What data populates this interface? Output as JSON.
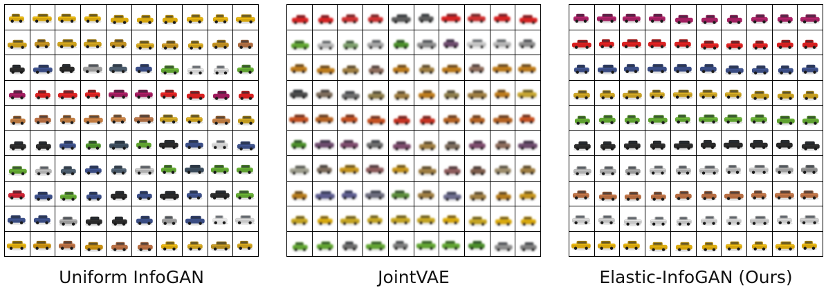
{
  "panels": [
    {
      "caption": "Uniform InfoGAN",
      "blurred": false,
      "rows": [
        [
          "#d4a40e",
          "#d4a40e",
          "#d4a40e",
          "#d4a40e",
          "#d4a40e",
          "#d4a40e",
          "#d4a40e",
          "#d4a40e",
          "#d4a40e",
          "#d4a40e"
        ],
        [
          "#c49a1c",
          "#b88a20",
          "#c49a1c",
          "#c49a1c",
          "#b88a20",
          "#c49a1c",
          "#b88a20",
          "#c49a1c",
          "#b88a20",
          "#a86a40"
        ],
        [
          "#2a2a2a",
          "#3a4c82",
          "#2a2a2a",
          "#9a9a9a",
          "#4a5a6a",
          "#3a4c82",
          "#5ea030",
          "#d0d0d0",
          "#c8c8c8",
          "#5ea030"
        ],
        [
          "#9a1a5a",
          "#d02020",
          "#d02020",
          "#d02020",
          "#9a1a5a",
          "#9a1a5a",
          "#d02020",
          "#d02020",
          "#9a1a5a",
          "#d02020"
        ],
        [
          "#b87840",
          "#b06a40",
          "#b87840",
          "#c07a40",
          "#b87840",
          "#a86a40",
          "#c09a20",
          "#c49a1c",
          "#b87840",
          "#c09a20"
        ],
        [
          "#2a2a2a",
          "#2a2a2a",
          "#3a4c82",
          "#4a8a2a",
          "#3a4a5a",
          "#5ea030",
          "#2a2a2a",
          "#3a4c82",
          "#d0d0d0",
          "#3a4c82"
        ],
        [
          "#5ea030",
          "#b0b0b0",
          "#4a5a6a",
          "#3a4c82",
          "#4a5a6a",
          "#b0b0b0",
          "#5ea030",
          "#3a4a5a",
          "#5ea030",
          "#5ea030"
        ],
        [
          "#c02030",
          "#3a4c82",
          "#5ea030",
          "#3a4c82",
          "#2a2a2a",
          "#3a4c82",
          "#2a2a2a",
          "#3a4c82",
          "#2a2a2a",
          "#5ea030"
        ],
        [
          "#3a4c82",
          "#3a4c82",
          "#9a9a9a",
          "#2a2a2a",
          "#2a2a2a",
          "#3a4c82",
          "#9a9a9a",
          "#3a4c82",
          "#e0e0e0",
          "#c8c8c8"
        ],
        [
          "#d4a40e",
          "#c08a10",
          "#b06a40",
          "#c08a10",
          "#b06a40",
          "#b06a40",
          "#d4a40e",
          "#c49a1c",
          "#b08a20",
          "#c49a1c"
        ]
      ]
    },
    {
      "caption": "JointVAE",
      "blurred": true,
      "rows": [
        [
          "#d02020",
          "#d02020",
          "#c83030",
          "#c83030",
          "#5a5a5a",
          "#5a5a5a",
          "#d02020",
          "#c83030",
          "#d02020",
          "#d02020"
        ],
        [
          "#5ea030",
          "#b0b0b0",
          "#7a9a6a",
          "#a0a0a0",
          "#4a8a2a",
          "#8a8a8a",
          "#6a4a6a",
          "#c0c0c0",
          "#b0b0b0",
          "#8a8a8a"
        ],
        [
          "#b8781a",
          "#b8781a",
          "#9a7a40",
          "#8a6a5a",
          "#b8781a",
          "#9a7a40",
          "#b8781a",
          "#8a6a5a",
          "#b8781a",
          "#b8781a"
        ],
        [
          "#4a4a4a",
          "#7a6a5a",
          "#6a6a6a",
          "#8a7a4a",
          "#9a7a40",
          "#b8781a",
          "#8a7a4a",
          "#9a7a40",
          "#b8781a",
          "#c0a030"
        ],
        [
          "#c05020",
          "#b06020",
          "#c05020",
          "#c05020",
          "#c03020",
          "#c03020",
          "#b06020",
          "#b06020",
          "#b06020",
          "#c05020"
        ],
        [
          "#4a8a2a",
          "#6a4a6a",
          "#7a4a6a",
          "#6a6a6a",
          "#7a4a6a",
          "#9a7a40",
          "#7a6a5a",
          "#7a4a6a",
          "#8a6a5a",
          "#6a4a6a"
        ],
        [
          "#9a9a8a",
          "#7a6a5a",
          "#c0901a",
          "#8a5a5a",
          "#c0901a",
          "#9a7a40",
          "#8a5a5a",
          "#7a5a4a",
          "#9a8a6a",
          "#9a7a40"
        ],
        [
          "#b0781a",
          "#5a5a8a",
          "#5a5a8a",
          "#6a6a7a",
          "#5a8a3a",
          "#9a7a40",
          "#6a6a8a",
          "#9a7a40",
          "#b0781a",
          "#c0901a"
        ],
        [
          "#c0a020",
          "#d4a40e",
          "#c0a020",
          "#c0a020",
          "#c0a020",
          "#c0a020",
          "#d4a40e",
          "#c0a020",
          "#d4a40e",
          "#d4a40e"
        ],
        [
          "#5ea030",
          "#5ea030",
          "#6a6a6a",
          "#5ea030",
          "#7a7a7a",
          "#5ea030",
          "#5ea030",
          "#4a8a2a",
          "#8a8a8a",
          "#7a7a7a"
        ]
      ]
    },
    {
      "caption": "Elastic-InfoGAN (Ours)",
      "blurred": false,
      "rows": [
        [
          "#a02060",
          "#a02060",
          "#a02060",
          "#a02060",
          "#a02060",
          "#a02060",
          "#a02060",
          "#a02060",
          "#a02060",
          "#a02060"
        ],
        [
          "#d02020",
          "#d02020",
          "#d02020",
          "#d02020",
          "#d02020",
          "#d02020",
          "#d02020",
          "#d02020",
          "#d02020",
          "#d02020"
        ],
        [
          "#3a4c82",
          "#3a4c82",
          "#3a4c82",
          "#3a4c82",
          "#3a4c82",
          "#3a4c82",
          "#3a4c82",
          "#3a4c82",
          "#3a4c82",
          "#3a4c82"
        ],
        [
          "#c09a20",
          "#c09a20",
          "#c09a20",
          "#c09a20",
          "#c09a20",
          "#c09a20",
          "#c09a20",
          "#c09a20",
          "#c09a20",
          "#c09a20"
        ],
        [
          "#5ea030",
          "#5ea030",
          "#5ea030",
          "#5ea030",
          "#5ea030",
          "#5ea030",
          "#5ea030",
          "#5ea030",
          "#5ea030",
          "#5ea030"
        ],
        [
          "#2a2a2a",
          "#2a2a2a",
          "#2a2a2a",
          "#2a2a2a",
          "#2a2a2a",
          "#2a2a2a",
          "#2a2a2a",
          "#2a2a2a",
          "#2a2a2a",
          "#2a2a2a"
        ],
        [
          "#b0b0b0",
          "#a8a8a8",
          "#9a9a9a",
          "#b8b8b8",
          "#a8a8a8",
          "#b0b0b0",
          "#b0b0b0",
          "#b8b8b8",
          "#a0a0a0",
          "#8a8a8a"
        ],
        [
          "#b06a40",
          "#b06a40",
          "#b06a40",
          "#b06a40",
          "#b06a40",
          "#b06a40",
          "#b06a40",
          "#b06a40",
          "#b06a40",
          "#b06a40"
        ],
        [
          "#c8c8c8",
          "#c0c0c0",
          "#c8c8c8",
          "#c8c8c8",
          "#c0c0c0",
          "#c8c8c8",
          "#c8c8c8",
          "#c0c0c0",
          "#c8c8c8",
          "#c0c0c0"
        ],
        [
          "#d4a40e",
          "#d4a40e",
          "#d4a40e",
          "#d4a40e",
          "#d4a40e",
          "#d4a40e",
          "#d4a40e",
          "#d4a40e",
          "#d4a40e",
          "#d4a40e"
        ]
      ]
    }
  ]
}
